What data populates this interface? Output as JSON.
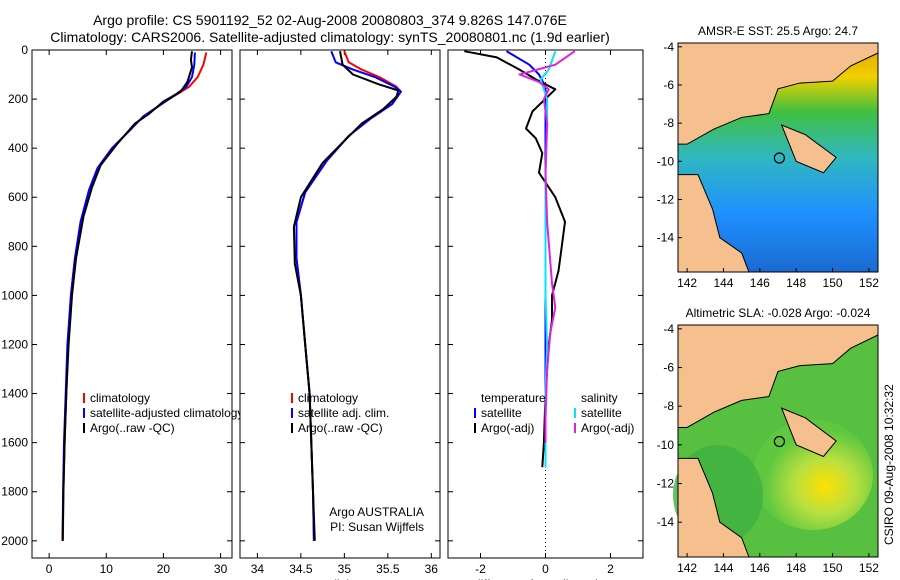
{
  "title_line1": "Argo profile: CS 5901192_52 02-Aug-2008 20080803_374 9.826S 147.076E",
  "title_line2": "Climatology: CARS2006. Satellite-adjusted climatology: synTS_20080801.nc (1.9d earlier)",
  "side_label": "CSIRO 09-Aug-2008 10:32:32",
  "colors": {
    "clim": "#ff0000",
    "sat": "#0000ff",
    "argo": "#000000",
    "sal_sat": "#00e5ff",
    "sal_argo": "#e020e0",
    "land": "#f5c08e",
    "coast": "#000000"
  },
  "chart_data": [
    {
      "id": "temperature",
      "type": "line",
      "xlabel": "temperature",
      "xticks": [
        0,
        10,
        20,
        30
      ],
      "xlim": [
        -3,
        32
      ],
      "yticks": [
        0,
        200,
        400,
        600,
        800,
        1000,
        1200,
        1400,
        1600,
        1800,
        2000
      ],
      "ylim": [
        2070,
        0
      ],
      "legend": [
        "climatology",
        "satellite-adjusted climatology",
        "Argo(..raw -QC)"
      ],
      "series": [
        {
          "name": "climatology",
          "color": "clim",
          "points": [
            [
              27.5,
              10
            ],
            [
              27,
              60
            ],
            [
              26,
              110
            ],
            [
              24.5,
              150
            ],
            [
              21,
              200
            ],
            [
              16.5,
              270
            ],
            [
              14,
              330
            ],
            [
              11,
              400
            ],
            [
              8.5,
              480
            ],
            [
              7,
              570
            ],
            [
              5.5,
              700
            ],
            [
              4.5,
              850
            ],
            [
              3.8,
              1000
            ],
            [
              3.3,
              1200
            ],
            [
              3,
              1400
            ],
            [
              2.7,
              1600
            ],
            [
              2.5,
              1800
            ],
            [
              2.4,
              2000
            ]
          ]
        },
        {
          "name": "satellite-adjusted climatology",
          "color": "sat",
          "points": [
            [
              25.5,
              10
            ],
            [
              25.4,
              60
            ],
            [
              25,
              110
            ],
            [
              24,
              150
            ],
            [
              21,
              200
            ],
            [
              16.5,
              270
            ],
            [
              14,
              330
            ],
            [
              11,
              400
            ],
            [
              8.5,
              480
            ],
            [
              7,
              570
            ],
            [
              5.5,
              700
            ],
            [
              4.5,
              850
            ],
            [
              3.8,
              1000
            ],
            [
              3.2,
              1200
            ],
            [
              2.9,
              1400
            ],
            [
              2.6,
              1600
            ],
            [
              2.45,
              1800
            ],
            [
              2.35,
              2000
            ]
          ]
        },
        {
          "name": "Argo(..raw -QC)",
          "color": "argo",
          "points": [
            [
              25,
              5
            ],
            [
              24.8,
              40
            ],
            [
              25,
              70
            ],
            [
              24.2,
              130
            ],
            [
              23,
              170
            ],
            [
              20,
              210
            ],
            [
              17.5,
              260
            ],
            [
              15,
              300
            ],
            [
              12,
              380
            ],
            [
              9,
              470
            ],
            [
              7.5,
              560
            ],
            [
              6,
              680
            ],
            [
              4.7,
              850
            ],
            [
              4,
              1000
            ],
            [
              3.4,
              1200
            ],
            [
              3,
              1400
            ],
            [
              2.7,
              1600
            ],
            [
              2.5,
              1800
            ],
            [
              2.35,
              2000
            ]
          ]
        }
      ]
    },
    {
      "id": "salinity",
      "type": "line",
      "xlabel": "salinity",
      "xticks": [
        34,
        34.5,
        35,
        35.5,
        36
      ],
      "xlim": [
        33.8,
        36.1
      ],
      "yticks": [
        0,
        200,
        400,
        600,
        800,
        1000,
        1200,
        1400,
        1600,
        1800,
        2000
      ],
      "ylim": [
        2070,
        0
      ],
      "legend": [
        "climatology",
        "satellite adj. clim.",
        "Argo(..raw -QC)"
      ],
      "annotation": [
        "Argo AUSTRALIA",
        "PI: Susan Wijffels"
      ],
      "series": [
        {
          "name": "climatology",
          "color": "clim",
          "points": [
            [
              35,
              5
            ],
            [
              35.05,
              50
            ],
            [
              35.2,
              80
            ],
            [
              35.4,
              110
            ],
            [
              35.6,
              150
            ],
            [
              35.65,
              170
            ],
            [
              35.55,
              220
            ],
            [
              35.3,
              280
            ],
            [
              35.05,
              350
            ],
            [
              34.8,
              450
            ],
            [
              34.55,
              580
            ],
            [
              34.45,
              700
            ],
            [
              34.45,
              850
            ],
            [
              34.5,
              1000
            ],
            [
              34.55,
              1200
            ],
            [
              34.6,
              1400
            ],
            [
              34.62,
              1600
            ],
            [
              34.64,
              1800
            ],
            [
              34.65,
              2000
            ]
          ]
        },
        {
          "name": "satellite adj. clim.",
          "color": "sat",
          "points": [
            [
              34.85,
              5
            ],
            [
              34.9,
              50
            ],
            [
              35.1,
              80
            ],
            [
              35.35,
              110
            ],
            [
              35.58,
              150
            ],
            [
              35.65,
              170
            ],
            [
              35.55,
              220
            ],
            [
              35.3,
              280
            ],
            [
              35.05,
              350
            ],
            [
              34.8,
              450
            ],
            [
              34.55,
              580
            ],
            [
              34.45,
              700
            ],
            [
              34.45,
              850
            ],
            [
              34.5,
              1000
            ],
            [
              34.55,
              1200
            ],
            [
              34.6,
              1400
            ],
            [
              34.62,
              1600
            ],
            [
              34.64,
              1800
            ],
            [
              34.65,
              2000
            ]
          ]
        },
        {
          "name": "Argo(..raw -QC)",
          "color": "argo",
          "points": [
            [
              34.95,
              5
            ],
            [
              34.98,
              60
            ],
            [
              35.1,
              100
            ],
            [
              35.4,
              140
            ],
            [
              35.62,
              165
            ],
            [
              35.6,
              190
            ],
            [
              35.45,
              240
            ],
            [
              35.2,
              300
            ],
            [
              35.0,
              370
            ],
            [
              34.75,
              460
            ],
            [
              34.5,
              600
            ],
            [
              34.42,
              720
            ],
            [
              34.43,
              870
            ],
            [
              34.5,
              1000
            ],
            [
              34.55,
              1200
            ],
            [
              34.6,
              1400
            ],
            [
              34.62,
              1600
            ],
            [
              34.64,
              1800
            ],
            [
              34.66,
              2000
            ]
          ]
        }
      ]
    },
    {
      "id": "difference",
      "type": "line",
      "xlabel": "difference from climatology",
      "xticks": [
        -2,
        0,
        2
      ],
      "xlim": [
        -3,
        3
      ],
      "yticks": [
        0,
        200,
        400,
        600,
        800,
        1000,
        1200,
        1400,
        1600,
        1800,
        2000
      ],
      "ylim": [
        2070,
        0
      ],
      "legend_left_title": "temperature",
      "legend_right_title": "salinity",
      "legend_left": [
        "satellite",
        "Argo(-adj)"
      ],
      "legend_right": [
        "satellite",
        "Argo(-adj)"
      ],
      "series": [
        {
          "name": "temperature satellite",
          "color": "sat",
          "points": [
            [
              -1.2,
              5
            ],
            [
              -0.5,
              60
            ],
            [
              -0.2,
              100
            ],
            [
              0,
              150
            ],
            [
              0,
              200
            ],
            [
              0,
              400
            ],
            [
              0,
              1000
            ],
            [
              0,
              1600
            ],
            [
              0,
              1700
            ]
          ]
        },
        {
          "name": "temperature Argo(-adj)",
          "color": "argo",
          "points": [
            [
              -2.5,
              5
            ],
            [
              -1.5,
              30
            ],
            [
              -0.8,
              80
            ],
            [
              -0.3,
              120
            ],
            [
              0.3,
              160
            ],
            [
              -0.4,
              250
            ],
            [
              -0.6,
              320
            ],
            [
              -0.3,
              360
            ],
            [
              -0.1,
              420
            ],
            [
              -0.2,
              500
            ],
            [
              0.3,
              600
            ],
            [
              0.6,
              700
            ],
            [
              0.5,
              800
            ],
            [
              0.4,
              900
            ],
            [
              0.2,
              1000
            ],
            [
              0.2,
              1100
            ],
            [
              0.1,
              1200
            ],
            [
              0,
              1400
            ],
            [
              -0.05,
              1600
            ],
            [
              -0.1,
              1700
            ]
          ]
        },
        {
          "name": "salinity satellite",
          "color": "sal_sat",
          "points": [
            [
              0.3,
              5
            ],
            [
              0.1,
              80
            ],
            [
              -0.15,
              120
            ],
            [
              -0.05,
              160
            ],
            [
              0.05,
              200
            ],
            [
              0.05,
              300
            ],
            [
              0,
              500
            ],
            [
              0,
              800
            ],
            [
              0,
              1000
            ],
            [
              0.05,
              1200
            ],
            [
              0,
              1400
            ],
            [
              0,
              1600
            ],
            [
              0,
              1700
            ]
          ]
        },
        {
          "name": "salinity Argo(-adj)",
          "color": "sal_argo",
          "points": [
            [
              0.9,
              5
            ],
            [
              0.3,
              60
            ],
            [
              -0.8,
              100
            ],
            [
              -0.2,
              130
            ],
            [
              0.1,
              160
            ],
            [
              -0.05,
              200
            ],
            [
              0.05,
              300
            ],
            [
              0,
              500
            ],
            [
              0.05,
              700
            ],
            [
              0.2,
              950
            ],
            [
              0.3,
              1050
            ],
            [
              0.15,
              1150
            ],
            [
              0.05,
              1300
            ],
            [
              0,
              1500
            ],
            [
              0,
              1600
            ]
          ]
        }
      ]
    }
  ],
  "maps": [
    {
      "id": "sst-map",
      "title": "AMSR-E SST: 25.5  Argo: 24.7",
      "lon_ticks": [
        142,
        144,
        146,
        148,
        150,
        152
      ],
      "lat_ticks": [
        -4,
        -6,
        -8,
        -10,
        -12,
        -14
      ],
      "lon_range": [
        141.5,
        152.5
      ],
      "lat_range": [
        -15.8,
        -3.8
      ],
      "argo_position": [
        147.076,
        -9.826
      ]
    },
    {
      "id": "sla-map",
      "title": "Altimetric SLA: -0.028  Argo: -0.024",
      "lon_ticks": [
        142,
        144,
        146,
        148,
        150,
        152
      ],
      "lat_ticks": [
        -4,
        -6,
        -8,
        -10,
        -12,
        -14
      ],
      "lon_range": [
        141.5,
        152.5
      ],
      "lat_range": [
        -15.8,
        -3.8
      ],
      "argo_position": [
        147.076,
        -9.826
      ]
    }
  ]
}
